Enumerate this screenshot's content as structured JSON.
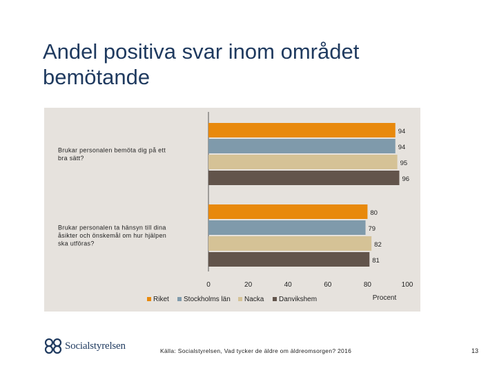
{
  "slide": {
    "title": "Andel positiva svar inom området bemötande",
    "source": "Källa: Socialstyrelsen, Vad tycker de äldre om äldreomsorgen? 2016",
    "page_number": "13",
    "logo_text": "Socialstyrelsen"
  },
  "chart_data": {
    "type": "bar",
    "orientation": "horizontal",
    "categories": [
      "Brukar personalen bemöta dig på ett bra sätt?",
      "Brukar personalen ta hänsyn till dina åsikter och önskemål om hur hjälpen ska utföras?"
    ],
    "category_lines": [
      [
        "Brukar personalen bemöta dig på ett",
        "bra sätt?"
      ],
      [
        "Brukar personalen ta hänsyn till dina",
        "åsikter och önskemål om hur hjälpen",
        "ska utföras?"
      ]
    ],
    "series": [
      {
        "name": "Riket",
        "color": "#e8890c",
        "values": [
          94,
          80
        ]
      },
      {
        "name": "Stockholms län",
        "color": "#7f9aab",
        "values": [
          94,
          79
        ]
      },
      {
        "name": "Nacka",
        "color": "#d5c296",
        "values": [
          95,
          82
        ]
      },
      {
        "name": "Danvikshem",
        "color": "#62544b",
        "values": [
          96,
          81
        ]
      }
    ],
    "xlim": [
      0,
      100
    ],
    "xticks": [
      0,
      20,
      40,
      60,
      80,
      100
    ],
    "xlabel": "Procent",
    "legend_position": "bottom",
    "grid": false
  }
}
